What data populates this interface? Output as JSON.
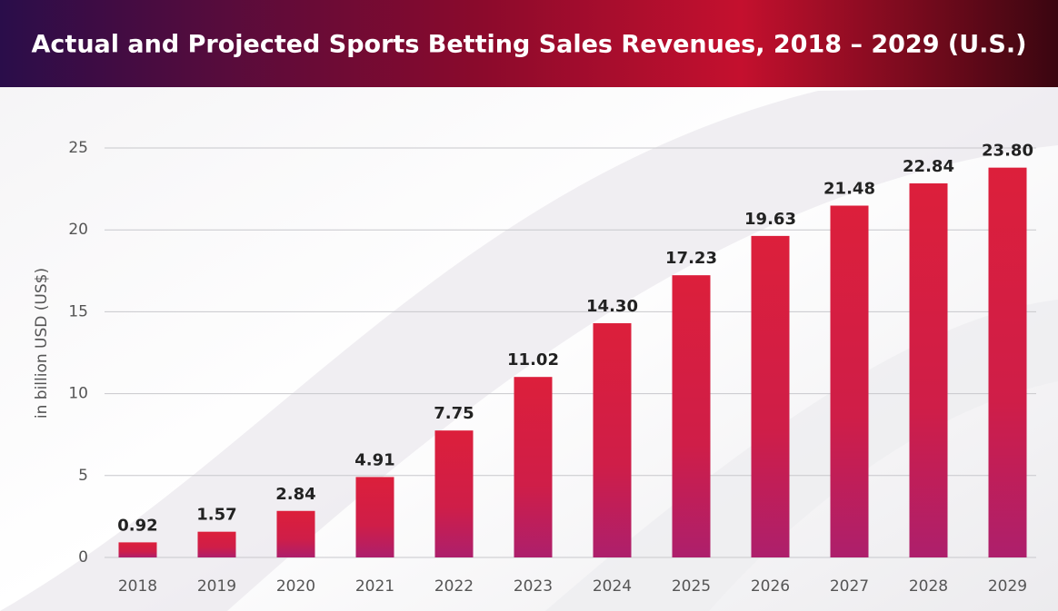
{
  "chart_data": {
    "type": "bar",
    "title": "Actual and Projected Sports Betting Sales Revenues, 2018 – 2029 (U.S.)",
    "y_label": "in billion USD (US$)",
    "categories": [
      "2018",
      "2019",
      "2020",
      "2021",
      "2022",
      "2023",
      "2024",
      "2025",
      "2026",
      "2027",
      "2028",
      "2029"
    ],
    "values": [
      0.92,
      1.57,
      2.84,
      4.91,
      7.75,
      11.02,
      14.3,
      17.23,
      19.63,
      21.48,
      22.84,
      23.8
    ],
    "value_labels": [
      "0.92",
      "1.57",
      "2.84",
      "4.91",
      "7.75",
      "11.02",
      "14.30",
      "17.23",
      "19.63",
      "21.48",
      "22.84",
      "23.80"
    ],
    "color": "#d91f3d",
    "ylim": [
      0,
      25
    ],
    "yticks": [
      0,
      5,
      10,
      15,
      20,
      25
    ],
    "grid": true
  }
}
